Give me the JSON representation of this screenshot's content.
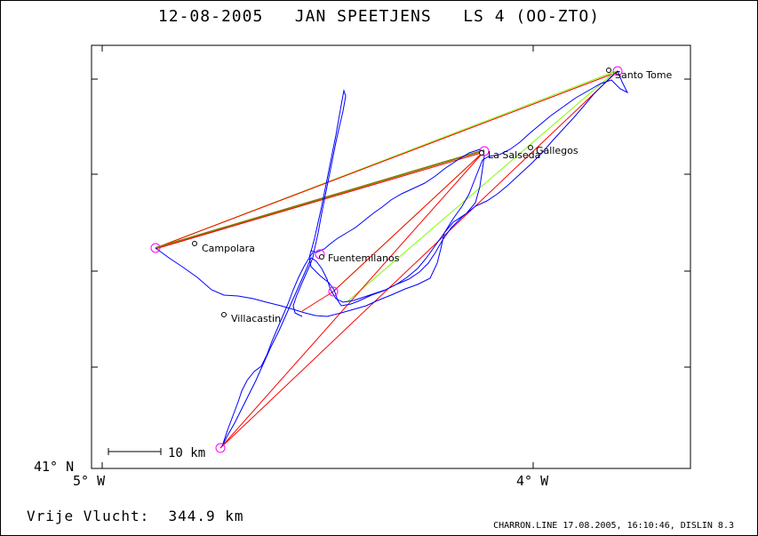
{
  "title": "12-08-2005   JAN SPEETJENS   LS 4 (OO-ZTO)",
  "axes": {
    "x_left_label": "5° W",
    "x_right_label": "4° W",
    "y_bottom_label": "41° N"
  },
  "scale_bar": {
    "label": "10 km"
  },
  "places": [
    {
      "name": "Santo Tome"
    },
    {
      "name": "La Salseda"
    },
    {
      "name": "Gallegos"
    },
    {
      "name": "Campolara"
    },
    {
      "name": "Fuentemilanos"
    },
    {
      "name": "Villacastin"
    }
  ],
  "footer": {
    "distance": "Vrije Vlucht:  344.9 km",
    "credit": "CHARRON.LINE 17.08.2005, 16:10:46, DISLIN 8.3"
  },
  "colors": {
    "track": "#0000ff",
    "task_red": "#ff0000",
    "task_green": "#80ff00",
    "task_olive": "#808000",
    "turnpoint": "#ff00ff"
  }
}
